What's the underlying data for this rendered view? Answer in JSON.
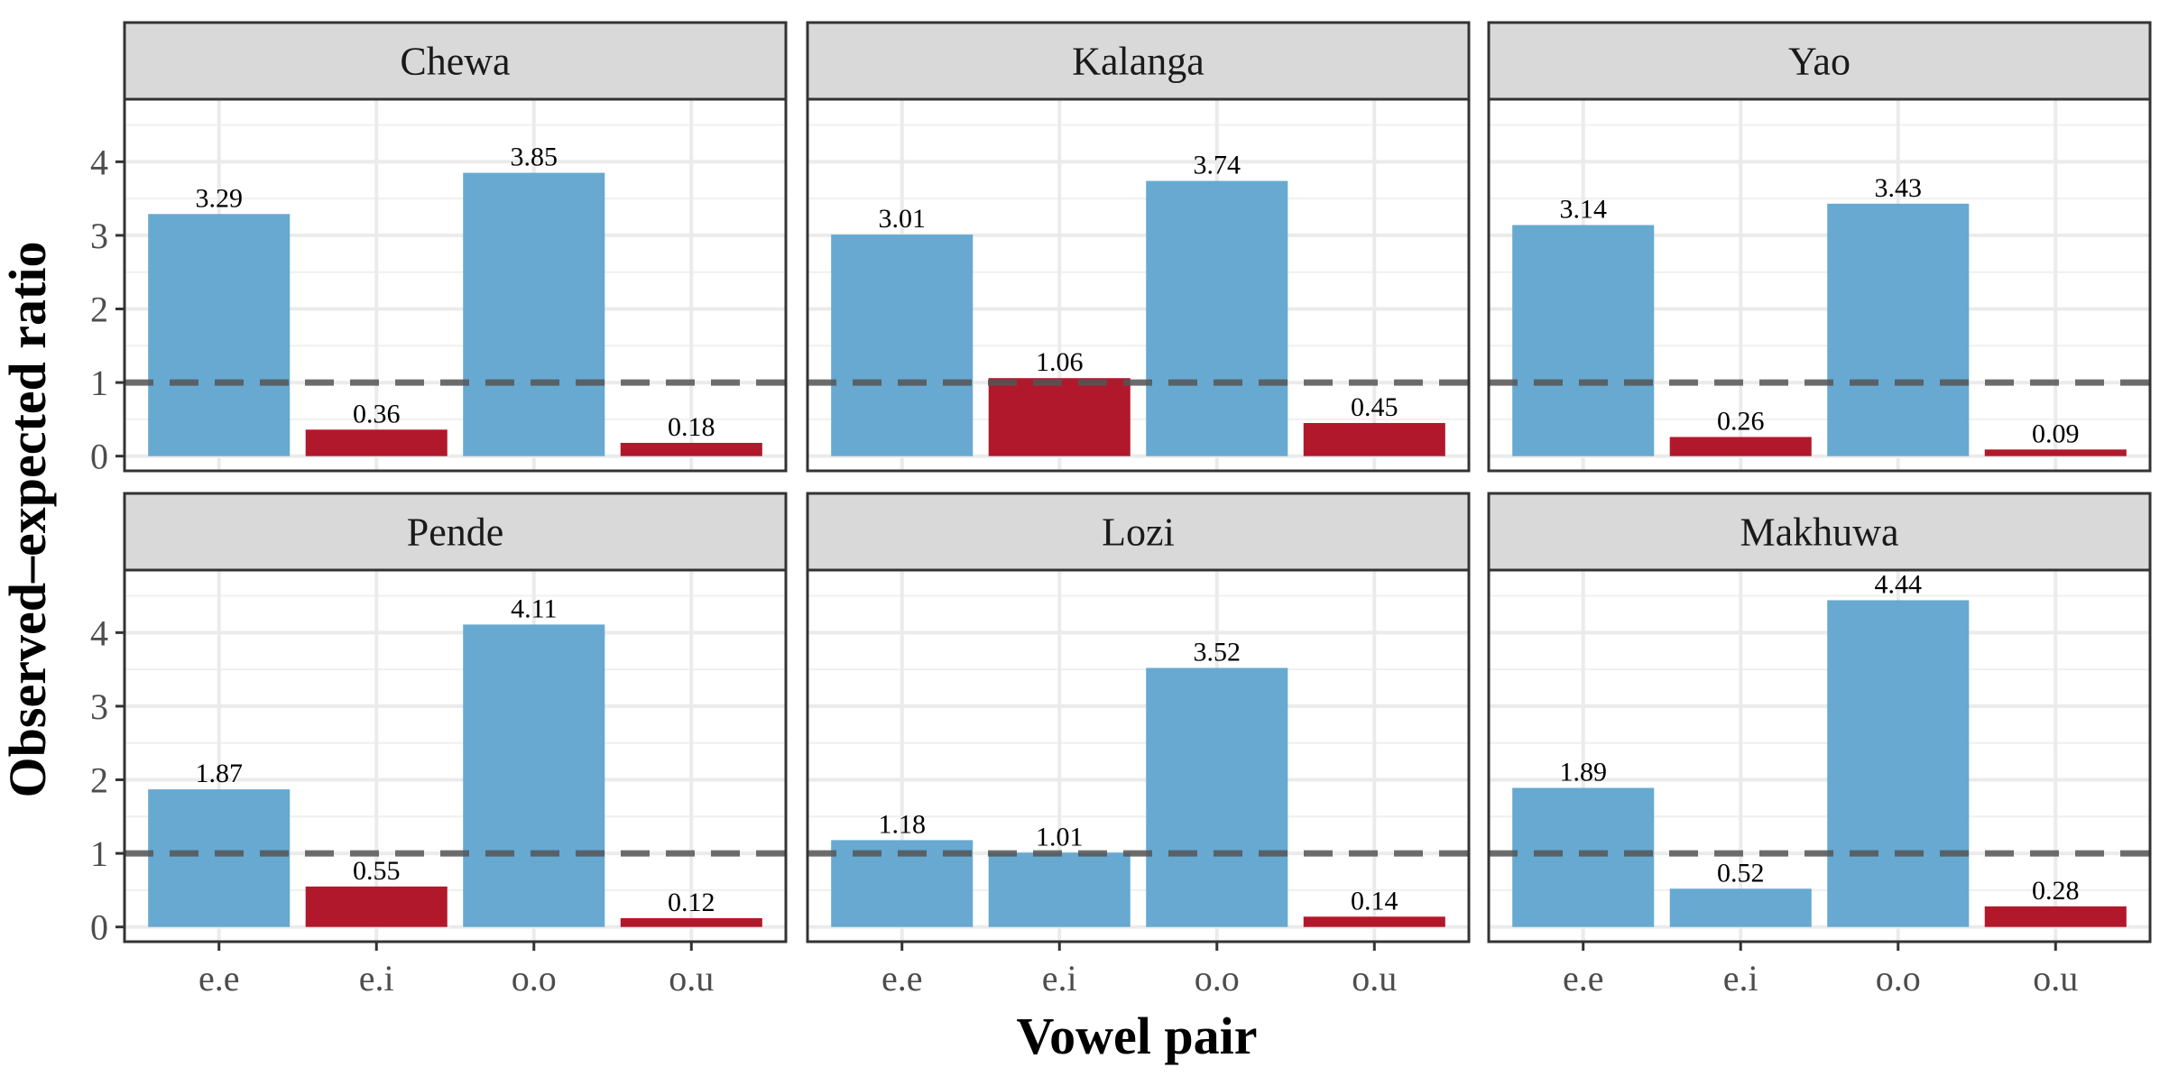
{
  "chart_data": {
    "type": "bar",
    "xlabel": "Vowel pair",
    "ylabel": "Observed–expected ratio",
    "categories": [
      "e.e",
      "e.i",
      "o.o",
      "o.u"
    ],
    "ylim": [
      -0.2,
      4.85
    ],
    "yticks": [
      0,
      1,
      2,
      3,
      4
    ],
    "reference_line": 1,
    "grid": true,
    "colors": {
      "above_one": "#67a9d1",
      "below_one": "#b2182b",
      "reference_line": "#555555",
      "strip_bg": "#d9d9d9"
    },
    "panels": [
      {
        "name": "Chewa",
        "values": [
          3.29,
          0.36,
          3.85,
          0.18
        ],
        "labels": [
          "3.29",
          "0.36",
          "3.85",
          "0.18"
        ],
        "highlight": [
          false,
          true,
          false,
          true
        ]
      },
      {
        "name": "Kalanga",
        "values": [
          3.01,
          1.06,
          3.74,
          0.45
        ],
        "labels": [
          "3.01",
          "1.06",
          "3.74",
          "0.45"
        ],
        "highlight": [
          false,
          true,
          false,
          true
        ]
      },
      {
        "name": "Yao",
        "values": [
          3.14,
          0.26,
          3.43,
          0.09
        ],
        "labels": [
          "3.14",
          "0.26",
          "3.43",
          "0.09"
        ],
        "highlight": [
          false,
          true,
          false,
          true
        ]
      },
      {
        "name": "Pende",
        "values": [
          1.87,
          0.55,
          4.11,
          0.12
        ],
        "labels": [
          "1.87",
          "0.55",
          "4.11",
          "0.12"
        ],
        "highlight": [
          false,
          true,
          false,
          true
        ]
      },
      {
        "name": "Lozi",
        "values": [
          1.18,
          1.01,
          3.52,
          0.14
        ],
        "labels": [
          "1.18",
          "1.01",
          "3.52",
          "0.14"
        ],
        "highlight": [
          false,
          false,
          false,
          true
        ]
      },
      {
        "name": "Makhuwa",
        "values": [
          1.89,
          0.52,
          4.44,
          0.28
        ],
        "labels": [
          "1.89",
          "0.52",
          "4.44",
          "0.28"
        ],
        "highlight": [
          false,
          false,
          false,
          true
        ]
      }
    ]
  }
}
